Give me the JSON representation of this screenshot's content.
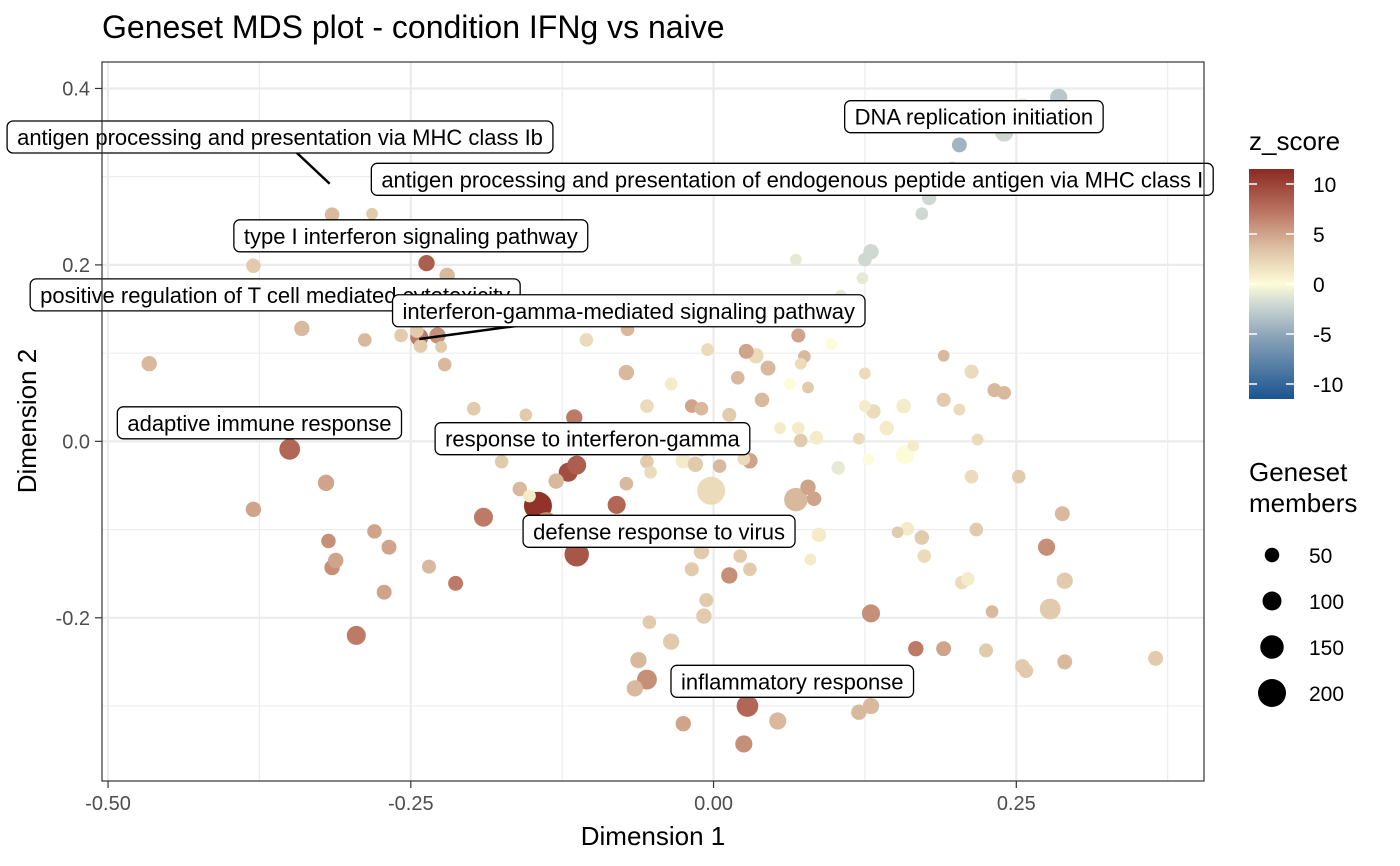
{
  "chart_data": {
    "type": "scatter",
    "title": "Geneset MDS plot - condition IFNg vs naive",
    "xlabel": "Dimension 1",
    "ylabel": "Dimension 2",
    "xlim": [
      -0.505,
      0.405
    ],
    "ylim": [
      -0.385,
      0.43
    ],
    "xticks": [
      {
        "value": -0.5,
        "label": "-0.50"
      },
      {
        "value": -0.25,
        "label": "-0.25"
      },
      {
        "value": 0.0,
        "label": "0.00"
      },
      {
        "value": 0.25,
        "label": "0.25"
      }
    ],
    "yticks": [
      {
        "value": -0.2,
        "label": "-0.2"
      },
      {
        "value": 0.0,
        "label": "0.0"
      },
      {
        "value": 0.2,
        "label": "0.2"
      },
      {
        "value": 0.4,
        "label": "0.4"
      }
    ],
    "grid": true,
    "color_legend": {
      "title": "z_score",
      "range": [
        -11.5,
        11.5
      ],
      "ticks": [
        {
          "value": 10,
          "label": "10"
        },
        {
          "value": 5,
          "label": "5"
        },
        {
          "value": 0,
          "label": "0"
        },
        {
          "value": -5,
          "label": "-5"
        },
        {
          "value": -10,
          "label": "-10"
        }
      ],
      "colors": {
        "low": "#1a5490",
        "mid_low": "#b9c6cc",
        "mid": "#fdfcd8",
        "mid_high": "#d9b492",
        "high": "#8b2a22"
      }
    },
    "size_legend": {
      "title_lines": [
        "Geneset",
        "members"
      ],
      "entries": [
        {
          "value": 50,
          "label": "50"
        },
        {
          "value": 100,
          "label": "100"
        },
        {
          "value": 150,
          "label": "150"
        },
        {
          "value": 200,
          "label": "200"
        }
      ]
    },
    "points": [
      {
        "x": -0.466,
        "y": 0.088,
        "z": 4,
        "n": 60
      },
      {
        "x": -0.38,
        "y": 0.199,
        "z": 3,
        "n": 50
      },
      {
        "x": -0.34,
        "y": 0.128,
        "z": 4,
        "n": 60
      },
      {
        "x": -0.315,
        "y": 0.257,
        "z": 4,
        "n": 50
      },
      {
        "x": -0.282,
        "y": 0.258,
        "z": 3,
        "n": 20
      },
      {
        "x": -0.288,
        "y": 0.115,
        "z": 4,
        "n": 40
      },
      {
        "x": -0.258,
        "y": 0.12,
        "z": 3,
        "n": 40
      },
      {
        "x": -0.237,
        "y": 0.202,
        "z": 8.5,
        "n": 70
      },
      {
        "x": -0.243,
        "y": 0.118,
        "z": 7,
        "n": 90
      },
      {
        "x": -0.242,
        "y": 0.108,
        "z": 3,
        "n": 40
      },
      {
        "x": -0.22,
        "y": 0.188,
        "z": 4,
        "n": 60
      },
      {
        "x": -0.228,
        "y": 0.12,
        "z": 6,
        "n": 70
      },
      {
        "x": -0.222,
        "y": 0.087,
        "z": 4,
        "n": 40
      },
      {
        "x": -0.225,
        "y": 0.107,
        "z": 3,
        "n": 20
      },
      {
        "x": -0.245,
        "y": 0.125,
        "z": 3,
        "n": 40
      },
      {
        "x": -0.35,
        "y": -0.009,
        "z": 8,
        "n": 120
      },
      {
        "x": -0.38,
        "y": -0.077,
        "z": 5,
        "n": 60
      },
      {
        "x": -0.32,
        "y": -0.047,
        "z": 5,
        "n": 70
      },
      {
        "x": -0.318,
        "y": -0.113,
        "z": 6,
        "n": 50
      },
      {
        "x": -0.315,
        "y": -0.143,
        "z": 6,
        "n": 60
      },
      {
        "x": -0.312,
        "y": -0.135,
        "z": 5,
        "n": 60
      },
      {
        "x": -0.28,
        "y": -0.102,
        "z": 5,
        "n": 50
      },
      {
        "x": -0.268,
        "y": -0.12,
        "z": 5,
        "n": 55
      },
      {
        "x": -0.272,
        "y": -0.171,
        "z": 5,
        "n": 55
      },
      {
        "x": -0.295,
        "y": -0.22,
        "z": 7,
        "n": 100
      },
      {
        "x": -0.235,
        "y": -0.142,
        "z": 4,
        "n": 45
      },
      {
        "x": -0.213,
        "y": -0.161,
        "z": 7,
        "n": 55
      },
      {
        "x": -0.198,
        "y": 0.037,
        "z": 3,
        "n": 40
      },
      {
        "x": -0.19,
        "y": -0.086,
        "z": 7,
        "n": 100
      },
      {
        "x": -0.175,
        "y": -0.023,
        "z": 3,
        "n": 40
      },
      {
        "x": -0.16,
        "y": -0.054,
        "z": 4,
        "n": 50
      },
      {
        "x": -0.155,
        "y": 0.03,
        "z": 3,
        "n": 30
      },
      {
        "x": -0.145,
        "y": -0.073,
        "z": 11,
        "n": 200
      },
      {
        "x": -0.138,
        "y": -0.094,
        "z": 6,
        "n": 160
      },
      {
        "x": -0.135,
        "y": -0.003,
        "z": 7,
        "n": 110
      },
      {
        "x": -0.13,
        "y": -0.045,
        "z": 4,
        "n": 60
      },
      {
        "x": -0.152,
        "y": -0.062,
        "z": 1,
        "n": 30
      },
      {
        "x": -0.12,
        "y": -0.035,
        "z": 9.5,
        "n": 100
      },
      {
        "x": -0.113,
        "y": -0.027,
        "z": 8.5,
        "n": 100
      },
      {
        "x": -0.115,
        "y": 0.027,
        "z": 7,
        "n": 70
      },
      {
        "x": -0.113,
        "y": -0.128,
        "z": 9,
        "n": 160
      },
      {
        "x": -0.105,
        "y": 0.115,
        "z": 2,
        "n": 40
      },
      {
        "x": -0.085,
        "y": 0.0,
        "z": 3,
        "n": 20
      },
      {
        "x": -0.08,
        "y": -0.072,
        "z": 8,
        "n": 90
      },
      {
        "x": -0.072,
        "y": 0.078,
        "z": 4,
        "n": 60
      },
      {
        "x": -0.072,
        "y": -0.048,
        "z": 4,
        "n": 40
      },
      {
        "x": -0.071,
        "y": 0.127,
        "z": 4,
        "n": 40
      },
      {
        "x": -0.055,
        "y": 0.04,
        "z": 2,
        "n": 40
      },
      {
        "x": -0.055,
        "y": -0.023,
        "z": 3,
        "n": 40
      },
      {
        "x": -0.052,
        "y": -0.035,
        "z": 2,
        "n": 30
      },
      {
        "x": -0.053,
        "y": -0.205,
        "z": 3,
        "n": 40
      },
      {
        "x": -0.062,
        "y": -0.248,
        "z": 4,
        "n": 70
      },
      {
        "x": -0.055,
        "y": -0.27,
        "z": 6,
        "n": 110
      },
      {
        "x": -0.065,
        "y": -0.28,
        "z": 4,
        "n": 70
      },
      {
        "x": -0.035,
        "y": 0.065,
        "z": 1,
        "n": 30
      },
      {
        "x": -0.035,
        "y": -0.227,
        "z": 3,
        "n": 70
      },
      {
        "x": -0.025,
        "y": -0.022,
        "z": 1,
        "n": 60
      },
      {
        "x": -0.018,
        "y": 0.04,
        "z": 5,
        "n": 40
      },
      {
        "x": -0.025,
        "y": -0.32,
        "z": 5,
        "n": 60
      },
      {
        "x": -0.015,
        "y": -0.026,
        "z": 3,
        "n": 60
      },
      {
        "x": -0.018,
        "y": -0.145,
        "z": 3,
        "n": 45
      },
      {
        "x": -0.01,
        "y": -0.125,
        "z": 3,
        "n": 60
      },
      {
        "x": -0.01,
        "y": 0.037,
        "z": 4,
        "n": 40
      },
      {
        "x": -0.008,
        "y": -0.198,
        "z": 3,
        "n": 60
      },
      {
        "x": -0.006,
        "y": -0.18,
        "z": 3,
        "n": 45
      },
      {
        "x": -0.005,
        "y": 0.104,
        "z": 2,
        "n": 30
      },
      {
        "x": -0.002,
        "y": -0.056,
        "z": 2,
        "n": 200
      },
      {
        "x": 0.005,
        "y": -0.028,
        "z": 4,
        "n": 40
      },
      {
        "x": -0.01,
        "y": -0.01,
        "z": 3,
        "n": 30
      },
      {
        "x": 0.013,
        "y": -0.152,
        "z": 6,
        "n": 70
      },
      {
        "x": 0.013,
        "y": 0.03,
        "z": 3,
        "n": 45
      },
      {
        "x": 0.02,
        "y": 0.072,
        "z": 4,
        "n": 40
      },
      {
        "x": 0.022,
        "y": -0.13,
        "z": 3,
        "n": 40
      },
      {
        "x": 0.025,
        "y": -0.02,
        "z": 2,
        "n": 30
      },
      {
        "x": 0.025,
        "y": -0.343,
        "z": 6,
        "n": 80
      },
      {
        "x": 0.027,
        "y": 0.102,
        "z": 5,
        "n": 55
      },
      {
        "x": 0.028,
        "y": -0.3,
        "z": 8,
        "n": 130
      },
      {
        "x": 0.03,
        "y": -0.022,
        "z": 5,
        "n": 60
      },
      {
        "x": 0.03,
        "y": -0.145,
        "z": 3,
        "n": 40
      },
      {
        "x": 0.035,
        "y": 0.097,
        "z": 2,
        "n": 60
      },
      {
        "x": 0.04,
        "y": 0.047,
        "z": 4,
        "n": 50
      },
      {
        "x": 0.045,
        "y": 0.083,
        "z": 4,
        "n": 55
      },
      {
        "x": 0.053,
        "y": -0.317,
        "z": 4,
        "n": 80
      },
      {
        "x": 0.055,
        "y": 0.015,
        "z": 1,
        "n": 20
      },
      {
        "x": 0.063,
        "y": 0.065,
        "z": 0,
        "n": 20
      },
      {
        "x": 0.068,
        "y": 0.206,
        "z": -1,
        "n": 20
      },
      {
        "x": 0.07,
        "y": 0.12,
        "z": 5,
        "n": 45
      },
      {
        "x": 0.07,
        "y": 0.015,
        "z": 1,
        "n": 30
      },
      {
        "x": 0.068,
        "y": -0.066,
        "z": 4,
        "n": 150
      },
      {
        "x": 0.072,
        "y": 0.001,
        "z": 3,
        "n": 40
      },
      {
        "x": 0.078,
        "y": -0.052,
        "z": 5,
        "n": 60
      },
      {
        "x": 0.075,
        "y": 0.096,
        "z": 4,
        "n": 30
      },
      {
        "x": 0.072,
        "y": 0.088,
        "z": 2,
        "n": 20
      },
      {
        "x": 0.078,
        "y": 0.061,
        "z": 3,
        "n": 20
      },
      {
        "x": 0.083,
        "y": -0.065,
        "z": 5,
        "n": 50
      },
      {
        "x": 0.085,
        "y": 0.004,
        "z": 1,
        "n": 40
      },
      {
        "x": 0.087,
        "y": -0.106,
        "z": 1,
        "n": 50
      },
      {
        "x": 0.08,
        "y": -0.134,
        "z": 1,
        "n": 20
      },
      {
        "x": 0.097,
        "y": 0.11,
        "z": 0,
        "n": 20
      },
      {
        "x": 0.103,
        "y": -0.03,
        "z": -1,
        "n": 40
      },
      {
        "x": 0.105,
        "y": 0.165,
        "z": -1,
        "n": 20
      },
      {
        "x": 0.12,
        "y": 0.003,
        "z": 2,
        "n": 20
      },
      {
        "x": 0.125,
        "y": 0.077,
        "z": 2,
        "n": 20
      },
      {
        "x": 0.125,
        "y": 0.04,
        "z": 1,
        "n": 20
      },
      {
        "x": 0.123,
        "y": 0.185,
        "z": -1,
        "n": 20
      },
      {
        "x": 0.125,
        "y": 0.206,
        "z": -2,
        "n": 40
      },
      {
        "x": 0.13,
        "y": 0.215,
        "z": -2,
        "n": 60
      },
      {
        "x": 0.128,
        "y": -0.02,
        "z": 0,
        "n": 20
      },
      {
        "x": 0.132,
        "y": 0.034,
        "z": 2,
        "n": 50
      },
      {
        "x": 0.12,
        "y": -0.307,
        "z": 4,
        "n": 60
      },
      {
        "x": 0.13,
        "y": -0.3,
        "z": 4,
        "n": 70
      },
      {
        "x": 0.13,
        "y": -0.195,
        "z": 6,
        "n": 90
      },
      {
        "x": 0.143,
        "y": 0.015,
        "z": 1,
        "n": 50
      },
      {
        "x": 0.152,
        "y": -0.103,
        "z": 3,
        "n": 20
      },
      {
        "x": 0.157,
        "y": 0.04,
        "z": 1,
        "n": 50
      },
      {
        "x": 0.158,
        "y": -0.015,
        "z": 0,
        "n": 100
      },
      {
        "x": 0.16,
        "y": -0.099,
        "z": 1,
        "n": 40
      },
      {
        "x": 0.165,
        "y": -0.005,
        "z": 1,
        "n": 20
      },
      {
        "x": 0.167,
        "y": -0.235,
        "z": 7,
        "n": 60
      },
      {
        "x": 0.172,
        "y": -0.109,
        "z": 3,
        "n": 50
      },
      {
        "x": 0.174,
        "y": -0.13,
        "z": 2,
        "n": 40
      },
      {
        "x": 0.172,
        "y": 0.258,
        "z": -2,
        "n": 30
      },
      {
        "x": 0.178,
        "y": 0.276,
        "z": -2,
        "n": 50
      },
      {
        "x": 0.19,
        "y": 0.047,
        "z": 3,
        "n": 45
      },
      {
        "x": 0.19,
        "y": 0.097,
        "z": 4,
        "n": 20
      },
      {
        "x": 0.19,
        "y": -0.235,
        "z": 5,
        "n": 55
      },
      {
        "x": 0.197,
        "y": 0.31,
        "z": -2,
        "n": 30
      },
      {
        "x": 0.203,
        "y": 0.336,
        "z": -4,
        "n": 55
      },
      {
        "x": 0.203,
        "y": 0.036,
        "z": 2,
        "n": 20
      },
      {
        "x": 0.205,
        "y": -0.16,
        "z": 2,
        "n": 40
      },
      {
        "x": 0.21,
        "y": -0.156,
        "z": 1,
        "n": 40
      },
      {
        "x": 0.213,
        "y": 0.079,
        "z": 2,
        "n": 45
      },
      {
        "x": 0.213,
        "y": -0.04,
        "z": 2,
        "n": 40
      },
      {
        "x": 0.217,
        "y": -0.1,
        "z": 3,
        "n": 40
      },
      {
        "x": 0.218,
        "y": 0.002,
        "z": 2,
        "n": 20
      },
      {
        "x": 0.225,
        "y": -0.237,
        "z": 3,
        "n": 45
      },
      {
        "x": 0.23,
        "y": -0.193,
        "z": 4,
        "n": 30
      },
      {
        "x": 0.232,
        "y": 0.058,
        "z": 4,
        "n": 45
      },
      {
        "x": 0.24,
        "y": 0.055,
        "z": 4,
        "n": 40
      },
      {
        "x": 0.24,
        "y": 0.35,
        "z": -2,
        "n": 90
      },
      {
        "x": 0.252,
        "y": -0.04,
        "z": 3,
        "n": 40
      },
      {
        "x": 0.255,
        "y": -0.255,
        "z": 3,
        "n": 50
      },
      {
        "x": 0.258,
        "y": -0.26,
        "z": 3,
        "n": 50
      },
      {
        "x": 0.255,
        "y": 0.38,
        "z": -1,
        "n": 60
      },
      {
        "x": 0.275,
        "y": -0.12,
        "z": 6,
        "n": 80
      },
      {
        "x": 0.278,
        "y": -0.19,
        "z": 3,
        "n": 120
      },
      {
        "x": 0.285,
        "y": 0.39,
        "z": -3,
        "n": 80
      },
      {
        "x": 0.288,
        "y": -0.082,
        "z": 4,
        "n": 55
      },
      {
        "x": 0.29,
        "y": -0.25,
        "z": 4,
        "n": 55
      },
      {
        "x": 0.29,
        "y": -0.158,
        "z": 3,
        "n": 70
      },
      {
        "x": 0.365,
        "y": -0.246,
        "z": 3,
        "n": 55
      }
    ],
    "annotations": [
      {
        "label": "DNA replication initiation",
        "x": 0.215,
        "y": 0.368,
        "px": 0.25,
        "py": 0.38
      },
      {
        "label": "antigen processing and presentation via MHC class Ib",
        "x": -0.358,
        "y": 0.345,
        "px": -0.317,
        "py": 0.292
      },
      {
        "label": "antigen processing and presentation of endogenous peptide antigen via MHC class I",
        "x": 0.065,
        "y": 0.297,
        "px": 0.065,
        "py": 0.297
      },
      {
        "label": "type I interferon signaling pathway",
        "x": -0.25,
        "y": 0.233,
        "px": -0.25,
        "py": 0.233
      },
      {
        "label": "positive regulation of T cell mediated cytotoxicity",
        "x": -0.362,
        "y": 0.166,
        "px": -0.362,
        "py": 0.166
      },
      {
        "label": "interferon-gamma-mediated signaling pathway",
        "x": -0.07,
        "y": 0.148,
        "px": -0.243,
        "py": 0.116
      },
      {
        "label": "adaptive immune response",
        "x": -0.375,
        "y": 0.021,
        "px": -0.375,
        "py": 0.021
      },
      {
        "label": "response to interferon-gamma",
        "x": -0.1,
        "y": 0.003,
        "px": -0.1,
        "py": 0.003
      },
      {
        "label": "defense response to virus",
        "x": -0.045,
        "y": -0.102,
        "px": -0.045,
        "py": -0.102
      },
      {
        "label": "inflammatory response",
        "x": 0.065,
        "y": -0.272,
        "px": 0.065,
        "py": -0.272
      }
    ]
  }
}
